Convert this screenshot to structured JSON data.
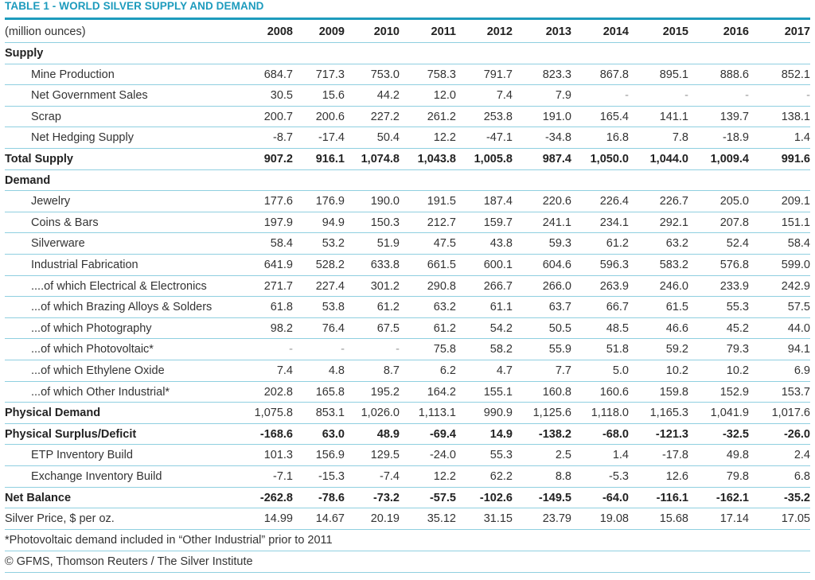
{
  "title": "TABLE 1 - WORLD SILVER SUPPLY AND DEMAND",
  "chart_data": {
    "type": "table",
    "title": "TABLE 1 - WORLD SILVER SUPPLY AND DEMAND",
    "unit_label": "(million ounces)",
    "columns": [
      "2008",
      "2009",
      "2010",
      "2011",
      "2012",
      "2013",
      "2014",
      "2015",
      "2016",
      "2017"
    ],
    "rows": [
      {
        "label": "Supply",
        "style": "section",
        "values": []
      },
      {
        "label": "Mine Production",
        "style": "indent",
        "values": [
          "684.7",
          "717.3",
          "753.0",
          "758.3",
          "791.7",
          "823.3",
          "867.8",
          "895.1",
          "888.6",
          "852.1"
        ]
      },
      {
        "label": "Net Government Sales",
        "style": "indent",
        "values": [
          "30.5",
          "15.6",
          "44.2",
          "12.0",
          "7.4",
          "7.9",
          "-",
          "-",
          "-",
          "-"
        ]
      },
      {
        "label": "Scrap",
        "style": "indent",
        "values": [
          "200.7",
          "200.6",
          "227.2",
          "261.2",
          "253.8",
          "191.0",
          "165.4",
          "141.1",
          "139.7",
          "138.1"
        ]
      },
      {
        "label": "Net Hedging Supply",
        "style": "indent",
        "values": [
          "-8.7",
          "-17.4",
          "50.4",
          "12.2",
          "-47.1",
          "-34.8",
          "16.8",
          "7.8",
          "-18.9",
          "1.4"
        ]
      },
      {
        "label": "Total Supply",
        "style": "bold",
        "values": [
          "907.2",
          "916.1",
          "1,074.8",
          "1,043.8",
          "1,005.8",
          "987.4",
          "1,050.0",
          "1,044.0",
          "1,009.4",
          "991.6"
        ]
      },
      {
        "label": "Demand",
        "style": "section",
        "values": []
      },
      {
        "label": "Jewelry",
        "style": "indent",
        "values": [
          "177.6",
          "176.9",
          "190.0",
          "191.5",
          "187.4",
          "220.6",
          "226.4",
          "226.7",
          "205.0",
          "209.1"
        ]
      },
      {
        "label": "Coins & Bars",
        "style": "indent",
        "values": [
          "197.9",
          "94.9",
          "150.3",
          "212.7",
          "159.7",
          "241.1",
          "234.1",
          "292.1",
          "207.8",
          "151.1"
        ]
      },
      {
        "label": "Silverware",
        "style": "indent",
        "values": [
          "58.4",
          "53.2",
          "51.9",
          "47.5",
          "43.8",
          "59.3",
          "61.2",
          "63.2",
          "52.4",
          "58.4"
        ]
      },
      {
        "label": "Industrial Fabrication",
        "style": "indent",
        "values": [
          "641.9",
          "528.2",
          "633.8",
          "661.5",
          "600.1",
          "604.6",
          "596.3",
          "583.2",
          "576.8",
          "599.0"
        ]
      },
      {
        "label": "....of which Electrical & Electronics",
        "style": "indent",
        "values": [
          "271.7",
          "227.4",
          "301.2",
          "290.8",
          "266.7",
          "266.0",
          "263.9",
          "246.0",
          "233.9",
          "242.9"
        ]
      },
      {
        "label": "...of which Brazing Alloys & Solders",
        "style": "indent",
        "values": [
          "61.8",
          "53.8",
          "61.2",
          "63.2",
          "61.1",
          "63.7",
          "66.7",
          "61.5",
          "55.3",
          "57.5"
        ]
      },
      {
        "label": "...of which Photography",
        "style": "indent",
        "values": [
          "98.2",
          "76.4",
          "67.5",
          "61.2",
          "54.2",
          "50.5",
          "48.5",
          "46.6",
          "45.2",
          "44.0"
        ]
      },
      {
        "label": "...of which Photovoltaic*",
        "style": "indent",
        "values": [
          "-",
          "-",
          "-",
          "75.8",
          "58.2",
          "55.9",
          "51.8",
          "59.2",
          "79.3",
          "94.1"
        ]
      },
      {
        "label": "...of which Ethylene Oxide",
        "style": "indent",
        "values": [
          "7.4",
          "4.8",
          "8.7",
          "6.2",
          "4.7",
          "7.7",
          "5.0",
          "10.2",
          "10.2",
          "6.9"
        ]
      },
      {
        "label": "...of which Other Industrial*",
        "style": "indent",
        "values": [
          "202.8",
          "165.8",
          "195.2",
          "164.2",
          "155.1",
          "160.8",
          "160.6",
          "159.8",
          "152.9",
          "153.7"
        ]
      },
      {
        "label": "Physical Demand",
        "style": "bold-label",
        "values": [
          "1,075.8",
          "853.1",
          "1,026.0",
          "1,113.1",
          "990.9",
          "1,125.6",
          "1,118.0",
          "1,165.3",
          "1,041.9",
          "1,017.6"
        ]
      },
      {
        "label": "Physical Surplus/Deficit",
        "style": "bold",
        "values": [
          "-168.6",
          "63.0",
          "48.9",
          "-69.4",
          "14.9",
          "-138.2",
          "-68.0",
          "-121.3",
          "-32.5",
          "-26.0"
        ]
      },
      {
        "label": "ETP Inventory Build",
        "style": "indent",
        "values": [
          "101.3",
          "156.9",
          "129.5",
          "-24.0",
          "55.3",
          "2.5",
          "1.4",
          "-17.8",
          "49.8",
          "2.4"
        ]
      },
      {
        "label": "Exchange Inventory Build",
        "style": "indent",
        "values": [
          "-7.1",
          "-15.3",
          "-7.4",
          "12.2",
          "62.2",
          "8.8",
          "-5.3",
          "12.6",
          "79.8",
          "6.8"
        ]
      },
      {
        "label": "Net Balance",
        "style": "bold",
        "values": [
          "-262.8",
          "-78.6",
          "-73.2",
          "-57.5",
          "-102.6",
          "-149.5",
          "-64.0",
          "-116.1",
          "-162.1",
          "-35.2"
        ]
      },
      {
        "label": "Silver Price, $ per oz.",
        "style": "plain",
        "values": [
          "14.99",
          "14.67",
          "20.19",
          "35.12",
          "31.15",
          "23.79",
          "19.08",
          "15.68",
          "17.14",
          "17.05"
        ]
      }
    ],
    "footnote": "*Photovoltaic demand included in “Other Industrial” prior to 2011",
    "source": "© GFMS, Thomson Reuters / The Silver Institute"
  }
}
